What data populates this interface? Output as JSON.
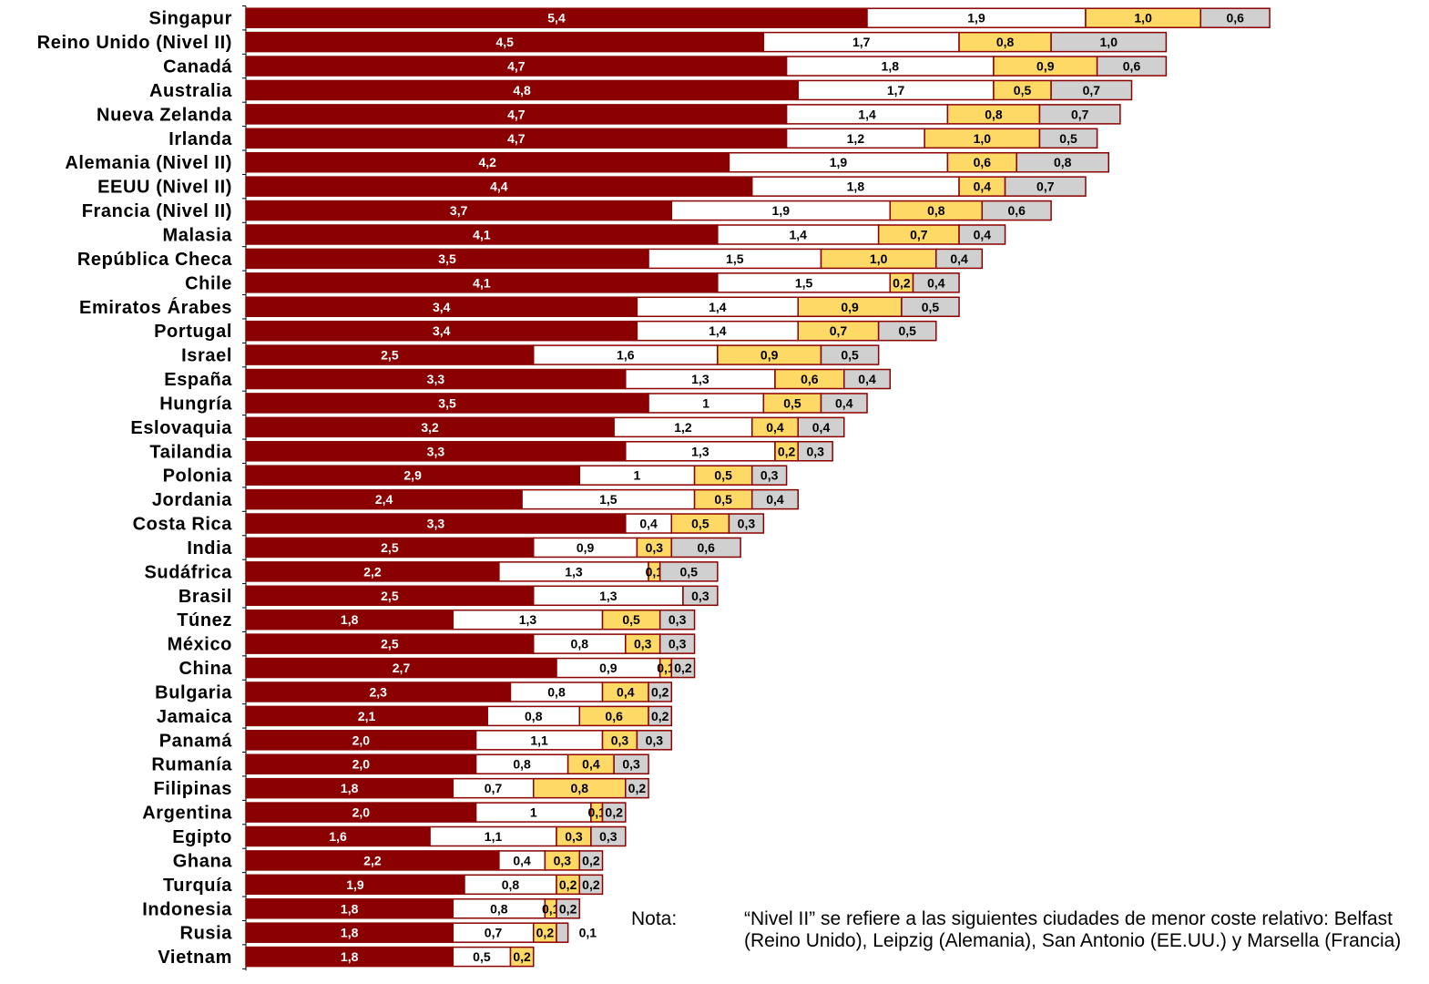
{
  "chart_data": {
    "type": "bar",
    "orientation": "horizontal",
    "stacked": true,
    "title": "",
    "xlabel": "",
    "ylabel": "",
    "legend": "none",
    "colors": [
      "#8B0000",
      "#FFFFFF",
      "#FFD966",
      "#D0D0D0"
    ],
    "categories": [
      "Singapur",
      "Reino Unido (Nivel II)",
      "Canadá",
      "Australia",
      "Nueva Zelanda",
      "Irlanda",
      "Alemania (Nivel II)",
      "EEUU (Nivel II)",
      "Francia (Nivel II)",
      "Malasia",
      "República Checa",
      "Chile",
      "Emiratos Árabes",
      "Portugal",
      "Israel",
      "España",
      "Hungría",
      "Eslovaquia",
      "Tailandia",
      "Polonia",
      "Jordania",
      "Costa Rica",
      "India",
      "Sudáfrica",
      "Brasil",
      "Túnez",
      "México",
      "China",
      "Bulgaria",
      "Jamaica",
      "Panamá",
      "Rumanía",
      "Filipinas",
      "Argentina",
      "Egipto",
      "Ghana",
      "Turquía",
      "Indonesia",
      "Rusia",
      "Vietnam"
    ],
    "series": [
      {
        "values": [
          5.4,
          4.5,
          4.7,
          4.8,
          4.7,
          4.7,
          4.2,
          4.4,
          3.7,
          4.1,
          3.5,
          4.1,
          3.4,
          3.4,
          2.5,
          3.3,
          3.5,
          3.2,
          3.3,
          2.9,
          2.4,
          3.3,
          2.5,
          2.2,
          2.5,
          1.8,
          2.5,
          2.7,
          2.3,
          2.1,
          2.0,
          2.0,
          1.8,
          2.0,
          1.6,
          2.2,
          1.9,
          1.8,
          1.8,
          1.8
        ],
        "labels": [
          "5,4",
          "4,5",
          "4,7",
          "4,8",
          "4,7",
          "4,7",
          "4,2",
          "4,4",
          "3,7",
          "4,1",
          "3,5",
          "4,1",
          "3,4",
          "3,4",
          "2,5",
          "3,3",
          "3,5",
          "3,2",
          "3,3",
          "2,9",
          "2,4",
          "3,3",
          "2,5",
          "2,2",
          "2,5",
          "1,8",
          "2,5",
          "2,7",
          "2,3",
          "2,1",
          "2,0",
          "2,0",
          "1,8",
          "2,0",
          "1,6",
          "2,2",
          "1,9",
          "1,8",
          "1,8",
          "1,8"
        ]
      },
      {
        "values": [
          1.9,
          1.7,
          1.8,
          1.7,
          1.4,
          1.2,
          1.9,
          1.8,
          1.9,
          1.4,
          1.5,
          1.5,
          1.4,
          1.4,
          1.6,
          1.3,
          1.0,
          1.2,
          1.3,
          1.0,
          1.5,
          0.4,
          0.9,
          1.3,
          1.3,
          1.3,
          0.8,
          0.9,
          0.8,
          0.8,
          1.1,
          0.8,
          0.7,
          1.0,
          1.1,
          0.4,
          0.8,
          0.8,
          0.7,
          0.5
        ],
        "labels": [
          "1,9",
          "1,7",
          "1,8",
          "1,7",
          "1,4",
          "1,2",
          "1,9",
          "1,8",
          "1,9",
          "1,4",
          "1,5",
          "1,5",
          "1,4",
          "1,4",
          "1,6",
          "1,3",
          "1",
          "1,2",
          "1,3",
          "1",
          "1,5",
          "0,4",
          "0,9",
          "1,3",
          "1,3",
          "1,3",
          "0,8",
          "0,9",
          "0,8",
          "0,8",
          "1,1",
          "0,8",
          "0,7",
          "1",
          "1,1",
          "0,4",
          "0,8",
          "0,8",
          "0,7",
          "0,5"
        ]
      },
      {
        "values": [
          1.0,
          0.8,
          0.9,
          0.5,
          0.8,
          1.0,
          0.6,
          0.4,
          0.8,
          0.7,
          1.0,
          0.2,
          0.9,
          0.7,
          0.9,
          0.6,
          0.5,
          0.4,
          0.2,
          0.5,
          0.5,
          0.5,
          0.3,
          0.1,
          0,
          0.5,
          0.3,
          0.1,
          0.4,
          0.6,
          0.3,
          0.4,
          0.8,
          0.1,
          0.3,
          0.3,
          0.2,
          0.1,
          0.2,
          0.2
        ],
        "labels": [
          "1,0",
          "0,8",
          "0,9",
          "0,5",
          "0,8",
          "1,0",
          "0,6",
          "0,4",
          "0,8",
          "0,7",
          "1,0",
          "0,2",
          "0,9",
          "0,7",
          "0,9",
          "0,6",
          "0,5",
          "0,4",
          "0,2",
          "0,5",
          "0,5",
          "0,5",
          "0,3",
          "0,1",
          "",
          "0,5",
          "0,3",
          "0,1",
          "0,4",
          "0,6",
          "0,3",
          "0,4",
          "0,8",
          "0,1",
          "0,3",
          "0,3",
          "0,2",
          "0,1",
          "0,2",
          "0,2"
        ]
      },
      {
        "values": [
          0.6,
          1.0,
          0.6,
          0.7,
          0.7,
          0.5,
          0.8,
          0.7,
          0.6,
          0.4,
          0.4,
          0.4,
          0.5,
          0.5,
          0.5,
          0.4,
          0.4,
          0.4,
          0.3,
          0.3,
          0.4,
          0.3,
          0.6,
          0.5,
          0.3,
          0.3,
          0.3,
          0.2,
          0.2,
          0.2,
          0.3,
          0.3,
          0.2,
          0.2,
          0.3,
          0.2,
          0.2,
          0.2,
          0.1,
          0
        ],
        "labels": [
          "0,6",
          "1,0",
          "0,6",
          "0,7",
          "0,7",
          "0,5",
          "0,8",
          "0,7",
          "0,6",
          "0,4",
          "0,4",
          "0,4",
          "0,5",
          "0,5",
          "0,5",
          "0,4",
          "0,4",
          "0,4",
          "0,3",
          "0,3",
          "0,4",
          "0,3",
          "0,6",
          "0,5",
          "0,3",
          "0,3",
          "0,3",
          "0,2",
          "0,2",
          "0,2",
          "0,3",
          "0,3",
          "0,2",
          "0,2",
          "0,3",
          "0,2",
          "0,2",
          "0,2",
          "0,1",
          ""
        ]
      }
    ]
  },
  "note": {
    "label": "Nota:",
    "text": "“Nivel II” se refiere a las siguientes ciudades de menor coste relativo: Belfast (Reino Unido), Leipzig (Alemania), San Antonio (EE.UU.) y Marsella (Francia)"
  }
}
